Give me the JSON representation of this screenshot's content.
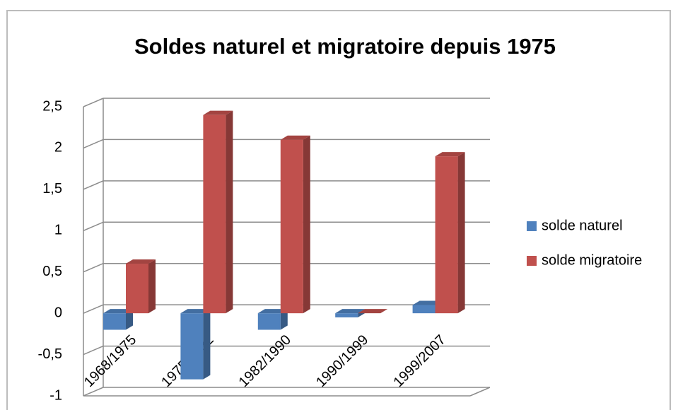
{
  "chart_data": {
    "type": "bar3d",
    "title": "Soldes naturel et migratoire  depuis 1975",
    "categories": [
      "1968/1975",
      "1975/1982",
      "1982/1990",
      "1990/1999",
      "1999/2007"
    ],
    "series": [
      {
        "name": "solde naturel",
        "color": "#4f81bd",
        "values": [
          -0.2,
          -0.8,
          -0.2,
          -0.05,
          0.1
        ]
      },
      {
        "name": "solde migratoire",
        "color": "#c0504d",
        "values": [
          0.6,
          2.4,
          2.1,
          0.0,
          1.9
        ]
      }
    ],
    "ylim": [
      -1,
      2.5
    ],
    "yticks": [
      {
        "value": 2.5,
        "label": "2,5"
      },
      2,
      {
        "value": 1.5,
        "label": "1,5"
      },
      1,
      {
        "value": 0.5,
        "label": "0,5"
      },
      0,
      {
        "value": -0.5,
        "label": "-0,5"
      },
      -1
    ],
    "grid": true,
    "legend": "right"
  }
}
